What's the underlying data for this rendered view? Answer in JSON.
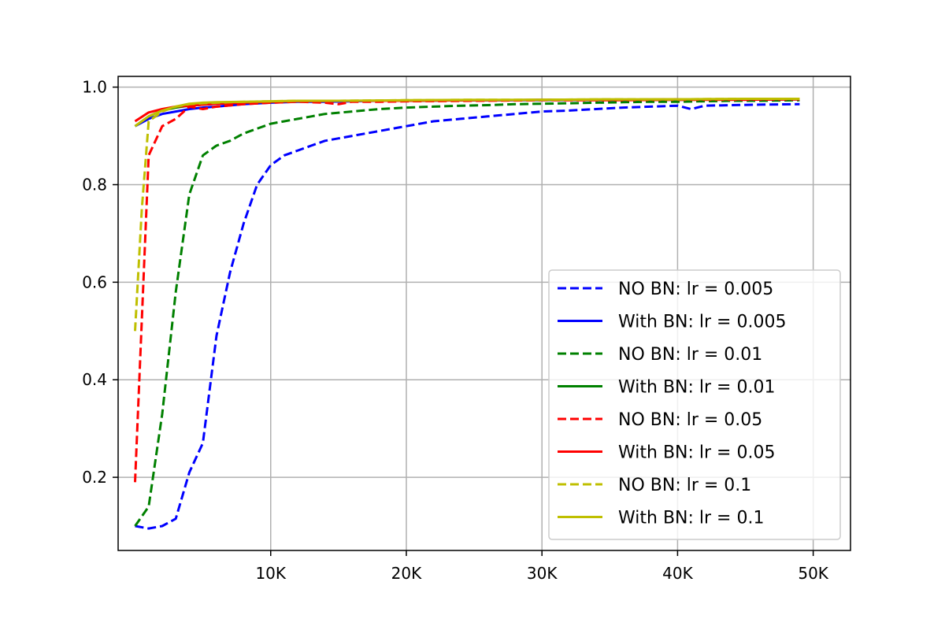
{
  "chart_data": {
    "type": "line",
    "title": "",
    "xlabel": "",
    "ylabel": "",
    "xlim": [
      -1250,
      52750
    ],
    "ylim": [
      0.05,
      1.022
    ],
    "grid": true,
    "legend_position": "lower-right",
    "x_ticks": [
      {
        "value": 10000,
        "label": "10K"
      },
      {
        "value": 20000,
        "label": "20K"
      },
      {
        "value": 30000,
        "label": "30K"
      },
      {
        "value": 40000,
        "label": "40K"
      },
      {
        "value": 50000,
        "label": "50K"
      }
    ],
    "y_ticks": [
      {
        "value": 0.2,
        "label": "0.2"
      },
      {
        "value": 0.4,
        "label": "0.4"
      },
      {
        "value": 0.6,
        "label": "0.6"
      },
      {
        "value": 0.8,
        "label": "0.8"
      },
      {
        "value": 1.0,
        "label": "1.0"
      }
    ],
    "series": [
      {
        "name": "NO BN: lr = 0.005",
        "color": "#0000ff",
        "dashed": true,
        "x": [
          0,
          1000,
          2000,
          3000,
          4000,
          5000,
          6000,
          7000,
          8000,
          9000,
          10000,
          11000,
          12000,
          13000,
          14000,
          15000,
          16000,
          17000,
          18000,
          19000,
          20000,
          22000,
          24000,
          26000,
          28000,
          30000,
          32000,
          34000,
          36000,
          38000,
          40000,
          41000,
          42000,
          44000,
          46000,
          49000
        ],
        "y": [
          0.1,
          0.095,
          0.1,
          0.115,
          0.21,
          0.27,
          0.49,
          0.62,
          0.72,
          0.8,
          0.84,
          0.86,
          0.87,
          0.88,
          0.89,
          0.895,
          0.9,
          0.905,
          0.91,
          0.915,
          0.92,
          0.93,
          0.935,
          0.94,
          0.945,
          0.95,
          0.952,
          0.955,
          0.958,
          0.96,
          0.962,
          0.955,
          0.962,
          0.963,
          0.964,
          0.965
        ]
      },
      {
        "name": "With BN: lr = 0.005",
        "color": "#0000ff",
        "dashed": false,
        "x": [
          0,
          1000,
          2000,
          3000,
          4000,
          5000,
          6000,
          8000,
          10000,
          12000,
          14000,
          16000,
          18000,
          20000,
          25000,
          30000,
          35000,
          40000,
          45000,
          49000
        ],
        "y": [
          0.92,
          0.935,
          0.945,
          0.95,
          0.955,
          0.958,
          0.96,
          0.965,
          0.968,
          0.97,
          0.97,
          0.971,
          0.972,
          0.972,
          0.973,
          0.973,
          0.974,
          0.974,
          0.975,
          0.975
        ]
      },
      {
        "name": "NO BN: lr = 0.01",
        "color": "#008000",
        "dashed": true,
        "x": [
          0,
          1000,
          2000,
          3000,
          4000,
          5000,
          6000,
          7000,
          8000,
          9000,
          10000,
          11000,
          12000,
          13000,
          14000,
          16000,
          18000,
          20000,
          22000,
          24000,
          26000,
          28000,
          30000,
          32000,
          34000,
          36000,
          38000,
          40000,
          42000,
          44000,
          46000,
          49000
        ],
        "y": [
          0.1,
          0.14,
          0.33,
          0.58,
          0.78,
          0.86,
          0.88,
          0.89,
          0.905,
          0.915,
          0.925,
          0.93,
          0.935,
          0.94,
          0.945,
          0.95,
          0.955,
          0.958,
          0.96,
          0.962,
          0.963,
          0.965,
          0.966,
          0.967,
          0.968,
          0.969,
          0.97,
          0.97,
          0.971,
          0.972,
          0.972,
          0.973
        ]
      },
      {
        "name": "With BN: lr = 0.01",
        "color": "#008000",
        "dashed": false,
        "x": [
          0,
          1000,
          2000,
          3000,
          4000,
          5000,
          6000,
          8000,
          10000,
          12000,
          15000,
          20000,
          25000,
          30000,
          35000,
          40000,
          45000,
          49000
        ],
        "y": [
          0.92,
          0.94,
          0.952,
          0.958,
          0.962,
          0.964,
          0.966,
          0.968,
          0.97,
          0.971,
          0.972,
          0.972,
          0.973,
          0.974,
          0.974,
          0.975,
          0.975,
          0.975
        ]
      },
      {
        "name": "NO BN: lr = 0.05",
        "color": "#ff0000",
        "dashed": true,
        "x": [
          0,
          1000,
          2000,
          3000,
          4000,
          5000,
          6000,
          8000,
          10000,
          12000,
          14000,
          15000,
          16000,
          18000,
          20000,
          25000,
          30000,
          35000,
          40000,
          45000,
          49000
        ],
        "y": [
          0.19,
          0.86,
          0.92,
          0.935,
          0.96,
          0.955,
          0.96,
          0.965,
          0.968,
          0.97,
          0.968,
          0.965,
          0.97,
          0.97,
          0.971,
          0.972,
          0.973,
          0.973,
          0.974,
          0.974,
          0.975
        ]
      },
      {
        "name": "With BN: lr = 0.05",
        "color": "#ff0000",
        "dashed": false,
        "x": [
          0,
          1000,
          2000,
          3000,
          4000,
          5000,
          6000,
          8000,
          10000,
          12000,
          15000,
          20000,
          25000,
          30000,
          35000,
          40000,
          45000,
          49000
        ],
        "y": [
          0.93,
          0.948,
          0.955,
          0.96,
          0.962,
          0.964,
          0.966,
          0.968,
          0.97,
          0.971,
          0.972,
          0.972,
          0.973,
          0.974,
          0.974,
          0.975,
          0.975,
          0.976
        ]
      },
      {
        "name": "NO BN: lr = 0.1",
        "color": "#bfbf00",
        "dashed": true,
        "x": [
          0,
          500,
          1000,
          2000,
          3000,
          4000,
          5000,
          6000,
          8000,
          10000,
          12000,
          15000,
          20000,
          25000,
          30000,
          35000,
          40000,
          45000,
          49000
        ],
        "y": [
          0.5,
          0.75,
          0.93,
          0.95,
          0.96,
          0.965,
          0.967,
          0.968,
          0.97,
          0.971,
          0.972,
          0.972,
          0.973,
          0.974,
          0.974,
          0.975,
          0.975,
          0.976,
          0.976
        ]
      },
      {
        "name": "With BN: lr = 0.1",
        "color": "#bfbf00",
        "dashed": false,
        "x": [
          0,
          1000,
          2000,
          3000,
          4000,
          5000,
          6000,
          8000,
          10000,
          12000,
          15000,
          20000,
          25000,
          30000,
          35000,
          40000,
          45000,
          49000
        ],
        "y": [
          0.92,
          0.94,
          0.952,
          0.96,
          0.966,
          0.968,
          0.969,
          0.97,
          0.971,
          0.972,
          0.972,
          0.973,
          0.974,
          0.974,
          0.975,
          0.975,
          0.976,
          0.976
        ]
      }
    ]
  }
}
